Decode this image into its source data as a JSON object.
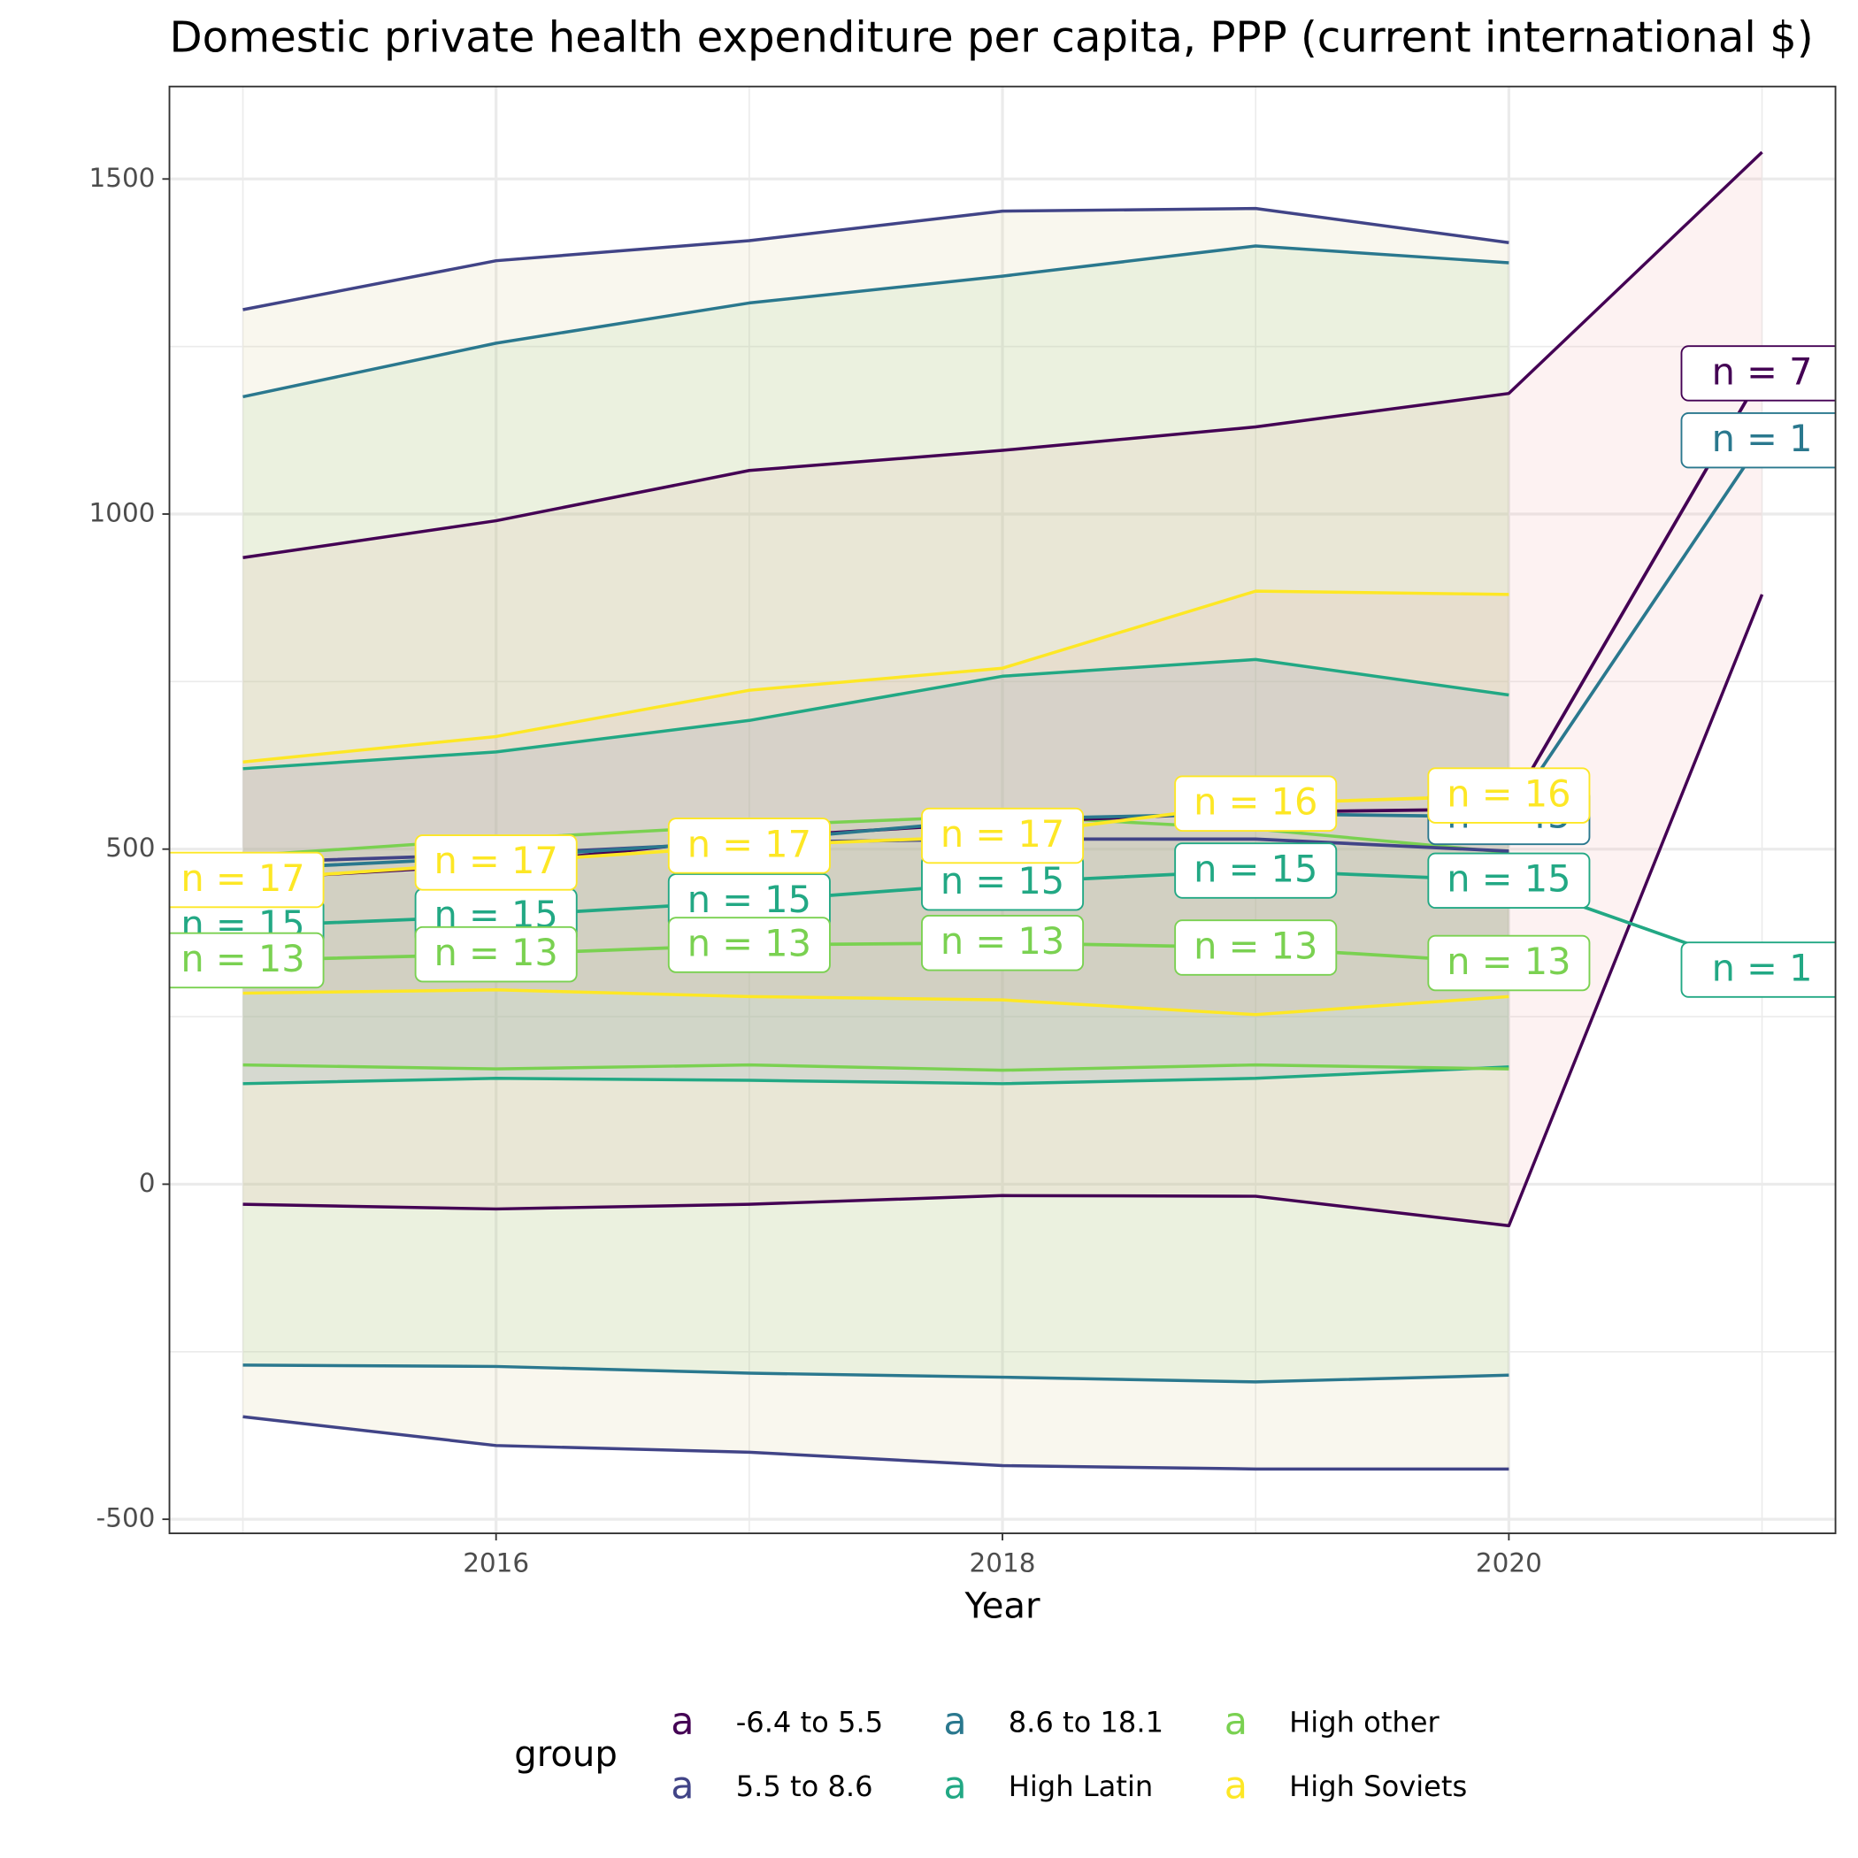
{
  "chart_data": {
    "type": "line",
    "title": "Domestic private health expenditure per capita, PPP (current international $)",
    "x_label": "Year",
    "x": [
      2015,
      2016,
      2017,
      2018,
      2019,
      2020,
      2021
    ],
    "xlim": [
      2014.71,
      2021.29
    ],
    "xticks": [
      2016,
      2018,
      2020
    ],
    "ylim": [
      -521,
      1638
    ],
    "yticks": [
      {
        "value": -500,
        "label": "-500"
      },
      0,
      500,
      1000,
      1500
    ],
    "grid": true,
    "ribbon_opacity": 0.15,
    "legend_title": "group",
    "legend_key": "a",
    "legend_position": "bottom",
    "series": [
      {
        "name": "-6.4 to 5.5",
        "color": "#440154",
        "fill": "#F4A6A6",
        "values": [
          455,
          477,
          517,
          540,
          555,
          560,
          1210
        ],
        "upper": [
          935,
          990,
          1065,
          1095,
          1130,
          1180,
          1540
        ],
        "lower": [
          -30,
          -37,
          -30,
          -17,
          -18,
          -62,
          880
        ],
        "value_labels": [
          null,
          null,
          null,
          null,
          null,
          null,
          "n = 7"
        ]
      },
      {
        "name": "5.5 to 8.6",
        "color": "#414487",
        "fill": "#D9C98A",
        "values": [
          480,
          492,
          510,
          515,
          515,
          497,
          null
        ],
        "upper": [
          1305,
          1378,
          1408,
          1452,
          1456,
          1405,
          null
        ],
        "lower": [
          -347,
          -390,
          -400,
          -420,
          -425,
          -425,
          null
        ],
        "value_labels": [
          null,
          null,
          null,
          null,
          null,
          null,
          null
        ]
      },
      {
        "name": "8.6 to 18.1",
        "color": "#2A788E",
        "fill": "#9BD38A",
        "values": [
          470,
          488,
          512,
          545,
          553,
          548,
          1110
        ],
        "upper": [
          1175,
          1255,
          1315,
          1355,
          1400,
          1375,
          null
        ],
        "lower": [
          -270,
          -272,
          -282,
          -288,
          -295,
          -285,
          null
        ],
        "value_labels": [
          null,
          null,
          null,
          null,
          null,
          "n = 45",
          "n = 1"
        ]
      },
      {
        "name": "High Latin",
        "color": "#22A884",
        "fill": "#6E8FB0",
        "values": [
          385,
          400,
          422,
          450,
          468,
          453,
          320
        ],
        "upper": [
          620,
          645,
          692,
          758,
          783,
          730,
          null
        ],
        "lower": [
          150,
          158,
          155,
          150,
          158,
          175,
          null
        ],
        "value_labels": [
          "n = 15",
          "n = 15",
          "n = 15",
          "n = 15",
          "n = 15",
          "n = 15",
          "n = 1"
        ]
      },
      {
        "name": "High other",
        "color": "#7AD151",
        "fill": "#B8C99A",
        "values": [
          334,
          343,
          357,
          360,
          353,
          330,
          null
        ],
        "upper": [
          490,
          515,
          535,
          550,
          530,
          495,
          null
        ],
        "lower": [
          178,
          172,
          178,
          170,
          178,
          172,
          null
        ],
        "value_labels": [
          "n = 13",
          "n = 13",
          "n = 13",
          "n = 13",
          "n = 13",
          "n = 13",
          null
        ]
      },
      {
        "name": "High Soviets",
        "color": "#FDE725",
        "fill": "#E0B0A0",
        "values": [
          454,
          480,
          505,
          520,
          568,
          580,
          null
        ],
        "upper": [
          630,
          668,
          737,
          770,
          885,
          880,
          null
        ],
        "lower": [
          285,
          290,
          280,
          275,
          253,
          280,
          null
        ],
        "value_labels": [
          "n = 17",
          "n = 17",
          "n = 17",
          "n = 17",
          "n = 16",
          "n = 16",
          null
        ]
      }
    ]
  }
}
